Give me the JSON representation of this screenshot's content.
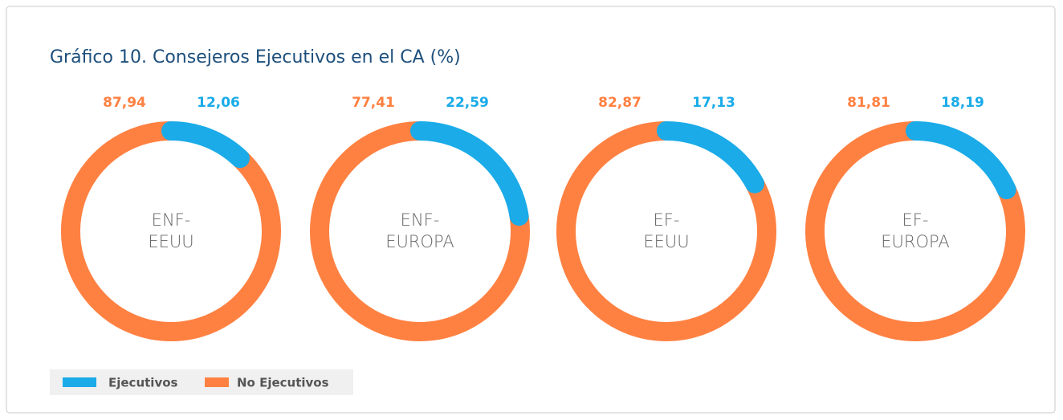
{
  "title": "Gráfico 10. Consejeros Ejecutivos en el CA (%)",
  "legend": [
    {
      "name": "Ejecutivos",
      "color": "#1aabe8"
    },
    {
      "name": "No Ejecutivos",
      "color": "#ff8142"
    }
  ],
  "chart_data": [
    {
      "type": "donut",
      "label": [
        "ENF-",
        "EEUU"
      ],
      "values": [
        12.06,
        87.94
      ],
      "value_labels": [
        "12,06",
        "87,94"
      ]
    },
    {
      "type": "donut",
      "label": [
        "ENF-",
        "EUROPA"
      ],
      "values": [
        22.59,
        77.41
      ],
      "value_labels": [
        "22,59",
        "77,41"
      ]
    },
    {
      "type": "donut",
      "label": [
        "EF-",
        "EEUU"
      ],
      "values": [
        17.13,
        82.87
      ],
      "value_labels": [
        "17,13",
        "82,87"
      ]
    },
    {
      "type": "donut",
      "label": [
        "EF-",
        "EUROPA"
      ],
      "values": [
        18.19,
        81.81
      ],
      "value_labels": [
        "18,19",
        "81,81"
      ]
    }
  ]
}
